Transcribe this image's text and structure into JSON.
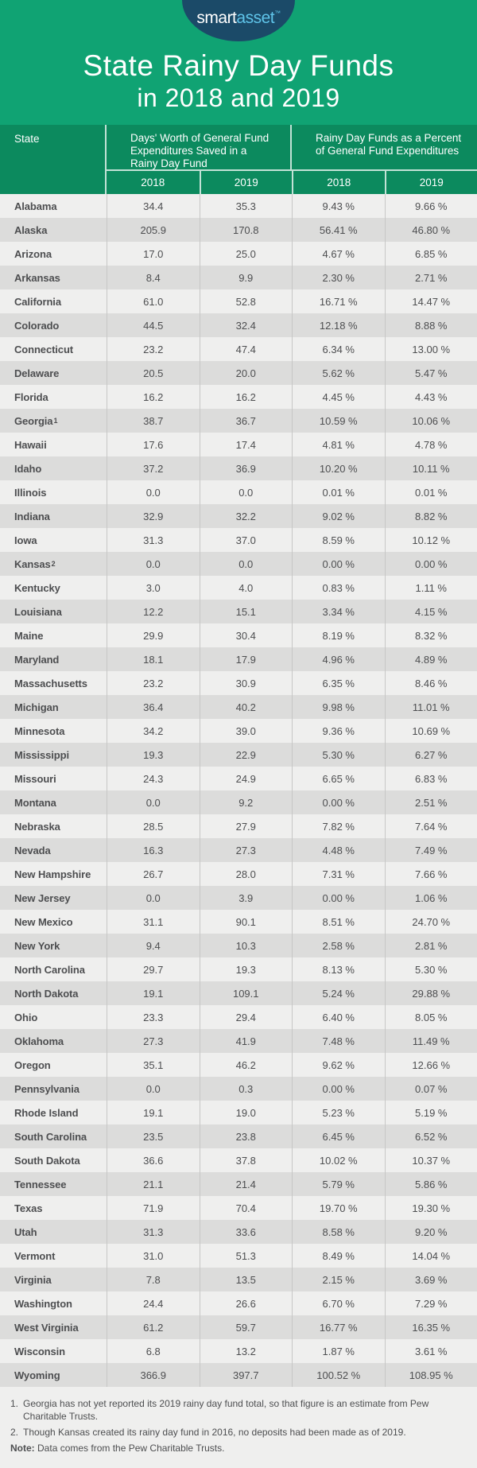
{
  "brand": {
    "smart": "smart",
    "asset": "asset",
    "tm": "™"
  },
  "title": {
    "line1": "State Rainy Day Funds",
    "line2": "in 2018 and 2019"
  },
  "colors": {
    "hero_green": "#10A373",
    "header_green": "#0C8A5E",
    "logo_navy": "#1B4A68",
    "logo_blue": "#5FC4E9",
    "row_light": "#EFEFEE",
    "row_dark": "#DCDCDB",
    "text_gray": "#4D4E50"
  },
  "chart_data": {
    "type": "table",
    "title": "State Rainy Day Funds in 2018 and 2019",
    "state_column": "State",
    "column_groups": [
      {
        "label": "Days' Worth of General Fund Expenditures Saved in a Rainy Day Fund",
        "years": [
          "2018",
          "2019"
        ]
      },
      {
        "label": "Rainy Day Funds as a Percent of General Fund Expenditures",
        "years": [
          "2018",
          "2019"
        ]
      }
    ],
    "value_formats": {
      "days": "one-decimal",
      "pct": "two-decimals-with-percent"
    },
    "rows": [
      {
        "state": "Alabama",
        "days": [
          34.4,
          35.3
        ],
        "pct": [
          9.43,
          9.66
        ]
      },
      {
        "state": "Alaska",
        "days": [
          205.9,
          170.8
        ],
        "pct": [
          56.41,
          46.8
        ]
      },
      {
        "state": "Arizona",
        "days": [
          17.0,
          25.0
        ],
        "pct": [
          4.67,
          6.85
        ]
      },
      {
        "state": "Arkansas",
        "days": [
          8.4,
          9.9
        ],
        "pct": [
          2.3,
          2.71
        ]
      },
      {
        "state": "California",
        "days": [
          61.0,
          52.8
        ],
        "pct": [
          16.71,
          14.47
        ]
      },
      {
        "state": "Colorado",
        "days": [
          44.5,
          32.4
        ],
        "pct": [
          12.18,
          8.88
        ]
      },
      {
        "state": "Connecticut",
        "days": [
          23.2,
          47.4
        ],
        "pct": [
          6.34,
          13.0
        ]
      },
      {
        "state": "Delaware",
        "days": [
          20.5,
          20.0
        ],
        "pct": [
          5.62,
          5.47
        ]
      },
      {
        "state": "Florida",
        "days": [
          16.2,
          16.2
        ],
        "pct": [
          4.45,
          4.43
        ]
      },
      {
        "state": "Georgia",
        "sup": "1",
        "days": [
          38.7,
          36.7
        ],
        "pct": [
          10.59,
          10.06
        ]
      },
      {
        "state": "Hawaii",
        "days": [
          17.6,
          17.4
        ],
        "pct": [
          4.81,
          4.78
        ]
      },
      {
        "state": "Idaho",
        "days": [
          37.2,
          36.9
        ],
        "pct": [
          10.2,
          10.11
        ]
      },
      {
        "state": "Illinois",
        "days": [
          0.0,
          0.0
        ],
        "pct": [
          0.01,
          0.01
        ]
      },
      {
        "state": "Indiana",
        "days": [
          32.9,
          32.2
        ],
        "pct": [
          9.02,
          8.82
        ]
      },
      {
        "state": "Iowa",
        "days": [
          31.3,
          37.0
        ],
        "pct": [
          8.59,
          10.12
        ]
      },
      {
        "state": "Kansas",
        "sup": "2",
        "days": [
          0.0,
          0.0
        ],
        "pct": [
          0.0,
          0.0
        ]
      },
      {
        "state": "Kentucky",
        "days": [
          3.0,
          4.0
        ],
        "pct": [
          0.83,
          1.11
        ]
      },
      {
        "state": "Louisiana",
        "days": [
          12.2,
          15.1
        ],
        "pct": [
          3.34,
          4.15
        ]
      },
      {
        "state": "Maine",
        "days": [
          29.9,
          30.4
        ],
        "pct": [
          8.19,
          8.32
        ]
      },
      {
        "state": "Maryland",
        "days": [
          18.1,
          17.9
        ],
        "pct": [
          4.96,
          4.89
        ]
      },
      {
        "state": "Massachusetts",
        "days": [
          23.2,
          30.9
        ],
        "pct": [
          6.35,
          8.46
        ]
      },
      {
        "state": "Michigan",
        "days": [
          36.4,
          40.2
        ],
        "pct": [
          9.98,
          11.01
        ]
      },
      {
        "state": "Minnesota",
        "days": [
          34.2,
          39.0
        ],
        "pct": [
          9.36,
          10.69
        ]
      },
      {
        "state": "Mississippi",
        "days": [
          19.3,
          22.9
        ],
        "pct": [
          5.3,
          6.27
        ]
      },
      {
        "state": "Missouri",
        "days": [
          24.3,
          24.9
        ],
        "pct": [
          6.65,
          6.83
        ]
      },
      {
        "state": "Montana",
        "days": [
          0.0,
          9.2
        ],
        "pct": [
          0.0,
          2.51
        ]
      },
      {
        "state": "Nebraska",
        "days": [
          28.5,
          27.9
        ],
        "pct": [
          7.82,
          7.64
        ]
      },
      {
        "state": "Nevada",
        "days": [
          16.3,
          27.3
        ],
        "pct": [
          4.48,
          7.49
        ]
      },
      {
        "state": "New Hampshire",
        "days": [
          26.7,
          28.0
        ],
        "pct": [
          7.31,
          7.66
        ]
      },
      {
        "state": "New Jersey",
        "days": [
          0.0,
          3.9
        ],
        "pct": [
          0.0,
          1.06
        ]
      },
      {
        "state": "New Mexico",
        "days": [
          31.1,
          90.1
        ],
        "pct": [
          8.51,
          24.7
        ]
      },
      {
        "state": "New York",
        "days": [
          9.4,
          10.3
        ],
        "pct": [
          2.58,
          2.81
        ]
      },
      {
        "state": "North Carolina",
        "days": [
          29.7,
          19.3
        ],
        "pct": [
          8.13,
          5.3
        ]
      },
      {
        "state": "North Dakota",
        "days": [
          19.1,
          109.1
        ],
        "pct": [
          5.24,
          29.88
        ]
      },
      {
        "state": "Ohio",
        "days": [
          23.3,
          29.4
        ],
        "pct": [
          6.4,
          8.05
        ]
      },
      {
        "state": "Oklahoma",
        "days": [
          27.3,
          41.9
        ],
        "pct": [
          7.48,
          11.49
        ]
      },
      {
        "state": "Oregon",
        "days": [
          35.1,
          46.2
        ],
        "pct": [
          9.62,
          12.66
        ]
      },
      {
        "state": "Pennsylvania",
        "days": [
          0.0,
          0.3
        ],
        "pct": [
          0.0,
          0.07
        ]
      },
      {
        "state": "Rhode Island",
        "days": [
          19.1,
          19.0
        ],
        "pct": [
          5.23,
          5.19
        ]
      },
      {
        "state": "South Carolina",
        "days": [
          23.5,
          23.8
        ],
        "pct": [
          6.45,
          6.52
        ]
      },
      {
        "state": "South Dakota",
        "days": [
          36.6,
          37.8
        ],
        "pct": [
          10.02,
          10.37
        ]
      },
      {
        "state": "Tennessee",
        "days": [
          21.1,
          21.4
        ],
        "pct": [
          5.79,
          5.86
        ]
      },
      {
        "state": "Texas",
        "days": [
          71.9,
          70.4
        ],
        "pct": [
          19.7,
          19.3
        ]
      },
      {
        "state": "Utah",
        "days": [
          31.3,
          33.6
        ],
        "pct": [
          8.58,
          9.2
        ]
      },
      {
        "state": "Vermont",
        "days": [
          31.0,
          51.3
        ],
        "pct": [
          8.49,
          14.04
        ]
      },
      {
        "state": "Virginia",
        "days": [
          7.8,
          13.5
        ],
        "pct": [
          2.15,
          3.69
        ]
      },
      {
        "state": "Washington",
        "days": [
          24.4,
          26.6
        ],
        "pct": [
          6.7,
          7.29
        ]
      },
      {
        "state": "West Virginia",
        "days": [
          61.2,
          59.7
        ],
        "pct": [
          16.77,
          16.35
        ]
      },
      {
        "state": "Wisconsin",
        "days": [
          6.8,
          13.2
        ],
        "pct": [
          1.87,
          3.61
        ]
      },
      {
        "state": "Wyoming",
        "days": [
          366.9,
          397.7
        ],
        "pct": [
          100.52,
          108.95
        ]
      }
    ]
  },
  "footnotes": [
    {
      "prefix": "1.",
      "text": "Georgia has not yet reported its 2019 rainy day fund total, so that figure is an estimate from Pew Charitable Trusts."
    },
    {
      "prefix": "2.",
      "text": "Though Kansas created its rainy day fund in 2016, no deposits had been made as of 2019."
    }
  ],
  "note": {
    "label": "Note:",
    "text": "Data comes from the Pew Charitable Trusts."
  }
}
